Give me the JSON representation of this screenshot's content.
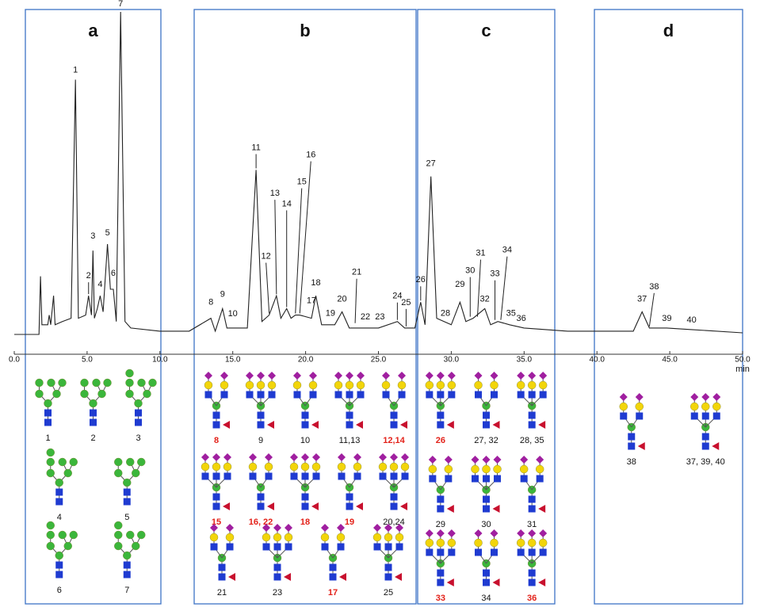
{
  "chart_data": {
    "type": "line",
    "x_label": "min",
    "xlim": [
      0,
      50
    ],
    "ylim": [
      0,
      100
    ],
    "xticks": [
      {
        "value": 0,
        "label": "0.0"
      },
      {
        "value": 5,
        "label": "5.0"
      },
      {
        "value": 10,
        "label": "10.0"
      },
      {
        "value": 15,
        "label": "15.0"
      },
      {
        "value": 20,
        "label": "20.0"
      },
      {
        "value": 25,
        "label": "25.0"
      },
      {
        "value": 30,
        "label": "30.0"
      },
      {
        "value": 35,
        "label": "35.0"
      },
      {
        "value": 40,
        "label": "40.0"
      },
      {
        "value": 45,
        "label": "45.0"
      },
      {
        "value": 50,
        "label": "50.0"
      }
    ],
    "series": [
      {
        "color": "#222222",
        "x": [
          0,
          1.7,
          1.8,
          1.9,
          2.3,
          2.4,
          2.5,
          2.7,
          2.8,
          3.3,
          3.9,
          4.2,
          4.4,
          4.9,
          5.1,
          5.3,
          5.4,
          5.5,
          5.7,
          5.9,
          6.1,
          6.4,
          6.6,
          6.8,
          7.0,
          7.3,
          7.6,
          8.0,
          10,
          12,
          13.5,
          13.8,
          14.3,
          14.6,
          15.0,
          16.0,
          16.6,
          17.0,
          17.5,
          18.0,
          18.3,
          18.7,
          19.0,
          19.3,
          19.6,
          20.4,
          20.7,
          21.1,
          21.7,
          22.0,
          22.5,
          23.0,
          24.0,
          25.0,
          26.3,
          26.8,
          27.5,
          27.9,
          28.2,
          28.6,
          29.0,
          30.0,
          30.6,
          31.0,
          31.5,
          32.3,
          32.7,
          33.2,
          34.0,
          35.0,
          38.0,
          42.5,
          43.1,
          43.6,
          44.8,
          46.5,
          50
        ],
        "values": [
          0,
          0,
          18,
          3,
          3,
          6,
          3,
          12,
          3,
          4,
          5,
          79,
          5,
          6,
          12,
          6,
          26,
          5,
          8,
          12,
          7,
          28,
          14,
          14,
          4,
          100,
          4,
          2,
          1,
          1,
          5,
          1,
          8,
          2,
          2,
          2,
          51,
          4,
          6,
          12,
          5,
          8,
          5,
          6,
          6,
          5,
          12,
          3,
          3,
          3,
          7,
          2,
          2,
          2,
          4,
          2,
          2,
          10,
          3,
          49,
          5,
          3,
          10,
          4,
          5,
          8,
          3,
          4,
          3,
          2,
          1,
          1,
          7,
          2,
          2,
          1.5,
          0.5
        ]
      }
    ],
    "annotations": [
      {
        "text": "1",
        "x": 4.2,
        "y": 79
      },
      {
        "text": "2",
        "x": 5.1,
        "y": 12
      },
      {
        "text": "3",
        "x": 5.4,
        "y": 26
      },
      {
        "text": "4",
        "x": 5.9,
        "y": 12
      },
      {
        "text": "5",
        "x": 6.4,
        "y": 28
      },
      {
        "text": "6",
        "x": 6.8,
        "y": 14
      },
      {
        "text": "7",
        "x": 7.3,
        "y": 100
      },
      {
        "text": "8",
        "x": 13.5,
        "y": 5
      },
      {
        "text": "9",
        "x": 14.3,
        "y": 8
      },
      {
        "text": "10",
        "x": 15.0,
        "y": 2
      },
      {
        "text": "11",
        "x": 16.6,
        "y": 51
      },
      {
        "text": "12",
        "x": 17.5,
        "y": 6
      },
      {
        "text": "13",
        "x": 18.0,
        "y": 12
      },
      {
        "text": "14",
        "x": 18.7,
        "y": 8
      },
      {
        "text": "15",
        "x": 19.3,
        "y": 6
      },
      {
        "text": "16",
        "x": 19.6,
        "y": 6
      },
      {
        "text": "17",
        "x": 20.4,
        "y": 5
      },
      {
        "text": "18",
        "x": 20.7,
        "y": 12
      },
      {
        "text": "19",
        "x": 21.7,
        "y": 3
      },
      {
        "text": "20",
        "x": 22.5,
        "y": 7
      },
      {
        "text": "21",
        "x": 23.4,
        "y": 3
      },
      {
        "text": "22",
        "x": 24.1,
        "y": 2
      },
      {
        "text": "23",
        "x": 25.1,
        "y": 2
      },
      {
        "text": "24",
        "x": 26.3,
        "y": 4
      },
      {
        "text": "25",
        "x": 26.9,
        "y": 2
      },
      {
        "text": "26",
        "x": 27.9,
        "y": 10
      },
      {
        "text": "27",
        "x": 28.6,
        "y": 49
      },
      {
        "text": "28",
        "x": 29.6,
        "y": 3
      },
      {
        "text": "29",
        "x": 30.6,
        "y": 10
      },
      {
        "text": "30",
        "x": 31.3,
        "y": 5
      },
      {
        "text": "31",
        "x": 31.8,
        "y": 5
      },
      {
        "text": "32",
        "x": 32.3,
        "y": 8
      },
      {
        "text": "33",
        "x": 33.0,
        "y": 4
      },
      {
        "text": "34",
        "x": 33.4,
        "y": 4
      },
      {
        "text": "35",
        "x": 34.1,
        "y": 3
      },
      {
        "text": "36",
        "x": 34.8,
        "y": 2
      },
      {
        "text": "37",
        "x": 43.1,
        "y": 7
      },
      {
        "text": "38",
        "x": 43.6,
        "y": 2
      },
      {
        "text": "39",
        "x": 44.8,
        "y": 2
      },
      {
        "text": "40",
        "x": 46.5,
        "y": 1.5
      }
    ],
    "glycan_panels": [
      {
        "panel": "a",
        "rows": [
          [
            {
              "label": "1"
            },
            {
              "label": "2"
            },
            {
              "label": "3"
            }
          ],
          [
            {
              "label": "4"
            },
            {
              "label": "5"
            }
          ],
          [
            {
              "label": "6"
            },
            {
              "label": "7"
            }
          ]
        ]
      },
      {
        "panel": "b",
        "rows": [
          [
            {
              "label": "8",
              "color": "#e32119"
            },
            {
              "label": "9"
            },
            {
              "label": "10"
            },
            {
              "label": "11,13"
            },
            {
              "label": "12,14",
              "color": "#e32119"
            }
          ],
          [
            {
              "label": "15",
              "color": "#e32119"
            },
            {
              "label": "16, 22",
              "color": "#e32119"
            },
            {
              "label": "18",
              "color": "#e32119"
            },
            {
              "label": "19",
              "color": "#e32119"
            },
            {
              "label": "20,24"
            }
          ],
          [
            {
              "label": "21"
            },
            {
              "label": "23"
            },
            {
              "label": "17",
              "color": "#e32119"
            },
            {
              "label": "25"
            }
          ]
        ]
      },
      {
        "panel": "c",
        "rows": [
          [
            {
              "label": "26",
              "color": "#e32119"
            },
            {
              "label": "27, 32"
            },
            {
              "label": "28, 35"
            }
          ],
          [
            {
              "label": "29"
            },
            {
              "label": "30"
            },
            {
              "label": "31"
            }
          ],
          [
            {
              "label": "33",
              "color": "#e32119"
            },
            {
              "label": "34"
            },
            {
              "label": "36",
              "color": "#e32119"
            }
          ]
        ]
      },
      {
        "panel": "d",
        "rows": [
          [
            {
              "label": "38"
            },
            {
              "label": "37, 39, 40"
            }
          ]
        ]
      }
    ]
  }
}
